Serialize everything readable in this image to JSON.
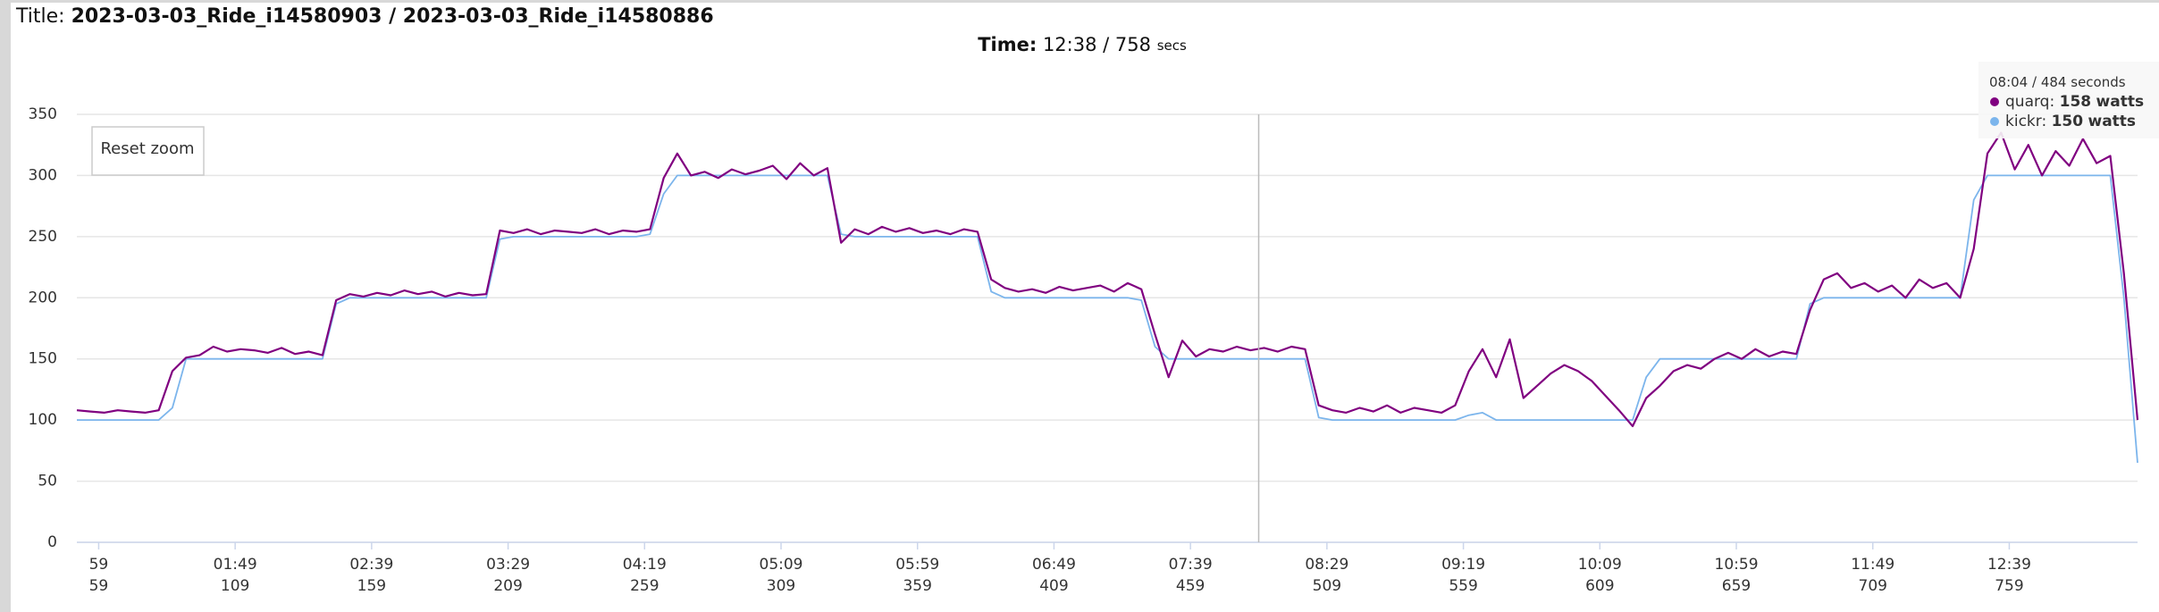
{
  "header": {
    "label": "Title:",
    "title": "2023-03-03_Ride_i14580903 / 2023-03-03_Ride_i14580886"
  },
  "time": {
    "label": "Time:",
    "clock": "12:38",
    "seconds": 758,
    "unit": "secs"
  },
  "reset_button": "Reset zoom",
  "chart_data": {
    "type": "line",
    "xlim": [
      51,
      806
    ],
    "ylim": [
      0,
      350
    ],
    "yticks": [
      0,
      50,
      100,
      150,
      200,
      250,
      300,
      350
    ],
    "xticks": [
      {
        "value": 59,
        "label": "59"
      },
      {
        "value": 109,
        "label": "01:49"
      },
      {
        "value": 159,
        "label": "02:39"
      },
      {
        "value": 209,
        "label": "03:29"
      },
      {
        "value": 259,
        "label": "04:19"
      },
      {
        "value": 309,
        "label": "05:09"
      },
      {
        "value": 359,
        "label": "05:59"
      },
      {
        "value": 409,
        "label": "06:49"
      },
      {
        "value": 459,
        "label": "07:39"
      },
      {
        "value": 509,
        "label": "08:29"
      },
      {
        "value": 559,
        "label": "09:19"
      },
      {
        "value": 609,
        "label": "10:09"
      },
      {
        "value": 659,
        "label": "10:59"
      },
      {
        "value": 709,
        "label": "11:49"
      },
      {
        "value": 759,
        "label": "12:39"
      }
    ],
    "grid": true,
    "x": [
      51,
      56,
      61,
      66,
      71,
      76,
      81,
      86,
      91,
      96,
      101,
      106,
      111,
      116,
      121,
      126,
      131,
      136,
      141,
      146,
      151,
      156,
      161,
      166,
      171,
      176,
      181,
      186,
      191,
      196,
      201,
      206,
      211,
      216,
      221,
      226,
      231,
      236,
      241,
      246,
      251,
      256,
      261,
      266,
      271,
      276,
      281,
      286,
      291,
      296,
      301,
      306,
      311,
      316,
      321,
      326,
      331,
      336,
      341,
      346,
      351,
      356,
      361,
      366,
      371,
      376,
      381,
      386,
      391,
      396,
      401,
      406,
      411,
      416,
      421,
      426,
      431,
      436,
      441,
      446,
      451,
      456,
      461,
      466,
      471,
      476,
      481,
      486,
      491,
      496,
      501,
      506,
      511,
      516,
      521,
      526,
      531,
      536,
      541,
      546,
      551,
      556,
      561,
      566,
      571,
      576,
      581,
      586,
      591,
      596,
      601,
      606,
      611,
      616,
      621,
      626,
      631,
      636,
      641,
      646,
      651,
      656,
      661,
      666,
      671,
      676,
      681,
      686,
      691,
      696,
      701,
      706,
      711,
      716,
      721,
      726,
      731,
      736,
      741,
      746,
      751,
      756,
      761,
      766,
      771,
      776,
      781,
      786,
      791,
      796,
      801,
      806
    ],
    "series": [
      {
        "name": "kickr",
        "color": "#7cb5ec",
        "values": [
          100,
          100,
          100,
          100,
          100,
          100,
          100,
          110,
          150,
          150,
          150,
          150,
          150,
          150,
          150,
          150,
          150,
          150,
          150,
          195,
          200,
          200,
          200,
          200,
          200,
          200,
          200,
          200,
          200,
          200,
          200,
          248,
          250,
          250,
          250,
          250,
          250,
          250,
          250,
          250,
          250,
          250,
          252,
          285,
          300,
          300,
          300,
          300,
          300,
          300,
          300,
          300,
          300,
          300,
          300,
          300,
          252,
          250,
          250,
          250,
          250,
          250,
          250,
          250,
          250,
          250,
          250,
          205,
          200,
          200,
          200,
          200,
          200,
          200,
          200,
          200,
          200,
          200,
          198,
          160,
          150,
          150,
          150,
          150,
          150,
          150,
          150,
          150,
          150,
          150,
          150,
          102,
          100,
          100,
          100,
          100,
          100,
          100,
          100,
          100,
          100,
          100,
          104,
          106,
          100,
          100,
          100,
          100,
          100,
          100,
          100,
          100,
          100,
          100,
          100,
          135,
          150,
          150,
          150,
          150,
          150,
          150,
          150,
          150,
          150,
          150,
          150,
          195,
          200,
          200,
          200,
          200,
          200,
          200,
          200,
          200,
          200,
          200,
          200,
          280,
          300,
          300,
          300,
          300,
          300,
          300,
          300,
          300,
          300,
          300,
          200,
          65
        ]
      },
      {
        "name": "quarq",
        "color": "#800080",
        "values": [
          108,
          107,
          106,
          108,
          107,
          106,
          108,
          140,
          151,
          153,
          160,
          156,
          158,
          157,
          155,
          159,
          154,
          156,
          153,
          198,
          203,
          201,
          204,
          202,
          206,
          203,
          205,
          201,
          204,
          202,
          203,
          255,
          253,
          256,
          252,
          255,
          254,
          253,
          256,
          252,
          255,
          254,
          256,
          298,
          318,
          300,
          303,
          298,
          305,
          301,
          304,
          308,
          297,
          310,
          300,
          306,
          245,
          256,
          252,
          258,
          254,
          257,
          253,
          255,
          252,
          256,
          254,
          215,
          208,
          205,
          207,
          204,
          209,
          206,
          208,
          210,
          205,
          212,
          207,
          170,
          135,
          165,
          152,
          158,
          156,
          160,
          157,
          159,
          156,
          160,
          158,
          112,
          108,
          106,
          110,
          107,
          112,
          106,
          110,
          108,
          106,
          112,
          140,
          158,
          135,
          166,
          118,
          128,
          138,
          145,
          140,
          132,
          120,
          108,
          95,
          118,
          128,
          140,
          145,
          142,
          150,
          155,
          150,
          158,
          152,
          156,
          154,
          190,
          215,
          220,
          208,
          212,
          205,
          210,
          200,
          215,
          208,
          212,
          200,
          240,
          318,
          335,
          305,
          325,
          300,
          320,
          308,
          330,
          310,
          316,
          220,
          100
        ]
      }
    ],
    "tooltip": {
      "clock": "08:04",
      "seconds": 484,
      "seconds_unit": "seconds",
      "items": [
        {
          "series": "quarq",
          "color": "#800080",
          "value": 158,
          "unit": "watts"
        },
        {
          "series": "kickr",
          "color": "#7cb5ec",
          "value": 150,
          "unit": "watts"
        }
      ]
    }
  }
}
